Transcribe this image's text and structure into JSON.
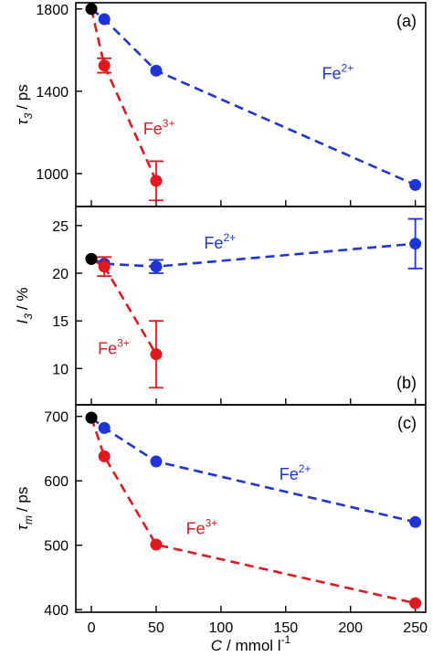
{
  "colors": {
    "fe2": "#1f33d6",
    "fe3": "#e0191e",
    "start": "#000000"
  },
  "chart_data": [
    {
      "type": "line",
      "panel": "(a)",
      "ylabel_symbol": "τ",
      "ylabel_sub": "3",
      "ylabel_unit": "/ ps",
      "ylim": [
        840,
        1830
      ],
      "yticks": [
        1000,
        1400,
        1800
      ],
      "xlim": [
        -12,
        258
      ],
      "xticks": [
        0,
        50,
        100,
        150,
        200,
        250
      ],
      "series": [
        {
          "name": "Fe",
          "charge": "2+",
          "color_key": "fe2",
          "x": [
            0,
            10,
            50,
            250
          ],
          "y": [
            1800,
            1750,
            1500,
            945
          ],
          "err": [
            0,
            0,
            0,
            0
          ]
        },
        {
          "name": "Fe",
          "charge": "3+",
          "color_key": "fe3",
          "x": [
            0,
            10,
            50
          ],
          "y": [
            1800,
            1525,
            965
          ],
          "err": [
            0,
            35,
            95
          ]
        }
      ],
      "annotations": [
        {
          "series": 0,
          "text": "Fe",
          "sup": "2+",
          "x": 178,
          "y": 1460
        },
        {
          "series": 1,
          "text": "Fe",
          "sup": "3+",
          "x": 40,
          "y": 1190
        }
      ]
    },
    {
      "type": "line",
      "panel": "(b)",
      "ylabel_symbol": "I",
      "ylabel_sub": "3",
      "ylabel_unit": "/ %",
      "ylim": [
        6.2,
        27
      ],
      "yticks": [
        10,
        15,
        20,
        25
      ],
      "xlim": [
        -12,
        258
      ],
      "xticks": [
        0,
        50,
        100,
        150,
        200,
        250
      ],
      "series": [
        {
          "name": "Fe",
          "charge": "2+",
          "color_key": "fe2",
          "x": [
            0,
            10,
            50,
            250
          ],
          "y": [
            21.5,
            21.0,
            20.7,
            23.1
          ],
          "err": [
            0,
            0,
            0.7,
            2.6
          ]
        },
        {
          "name": "Fe",
          "charge": "3+",
          "color_key": "fe3",
          "x": [
            0,
            10,
            50
          ],
          "y": [
            21.5,
            20.7,
            11.5
          ],
          "err": [
            0,
            1.0,
            3.5
          ]
        }
      ],
      "annotations": [
        {
          "series": 0,
          "text": "Fe",
          "sup": "2+",
          "x": 87,
          "y": 22.6
        },
        {
          "series": 1,
          "text": "Fe",
          "sup": "3+",
          "x": 5,
          "y": 11.5
        }
      ]
    },
    {
      "type": "line",
      "panel": "(c)",
      "ylabel_symbol": "τ",
      "ylabel_sub": "m",
      "ylabel_unit": "/ ps",
      "ylim": [
        396,
        718
      ],
      "yticks": [
        400,
        500,
        600,
        700
      ],
      "xlim": [
        -12,
        258
      ],
      "xticks": [
        0,
        50,
        100,
        150,
        200,
        250
      ],
      "xlabel": "C",
      "xlabel_unit": "/ mmol l",
      "xlabel_unit_sup": "-1",
      "series": [
        {
          "name": "Fe",
          "charge": "2+",
          "color_key": "fe2",
          "x": [
            0,
            10,
            50,
            250
          ],
          "y": [
            698,
            682,
            630,
            536
          ],
          "err": [
            0,
            0,
            0,
            0
          ]
        },
        {
          "name": "Fe",
          "charge": "3+",
          "color_key": "fe3",
          "x": [
            0,
            10,
            50,
            250
          ],
          "y": [
            698,
            638,
            501,
            410
          ],
          "err": [
            0,
            0,
            0,
            0
          ]
        }
      ],
      "annotations": [
        {
          "series": 0,
          "text": "Fe",
          "sup": "2+",
          "x": 145,
          "y": 602
        },
        {
          "series": 1,
          "text": "Fe",
          "sup": "3+",
          "x": 73,
          "y": 517
        }
      ]
    }
  ]
}
